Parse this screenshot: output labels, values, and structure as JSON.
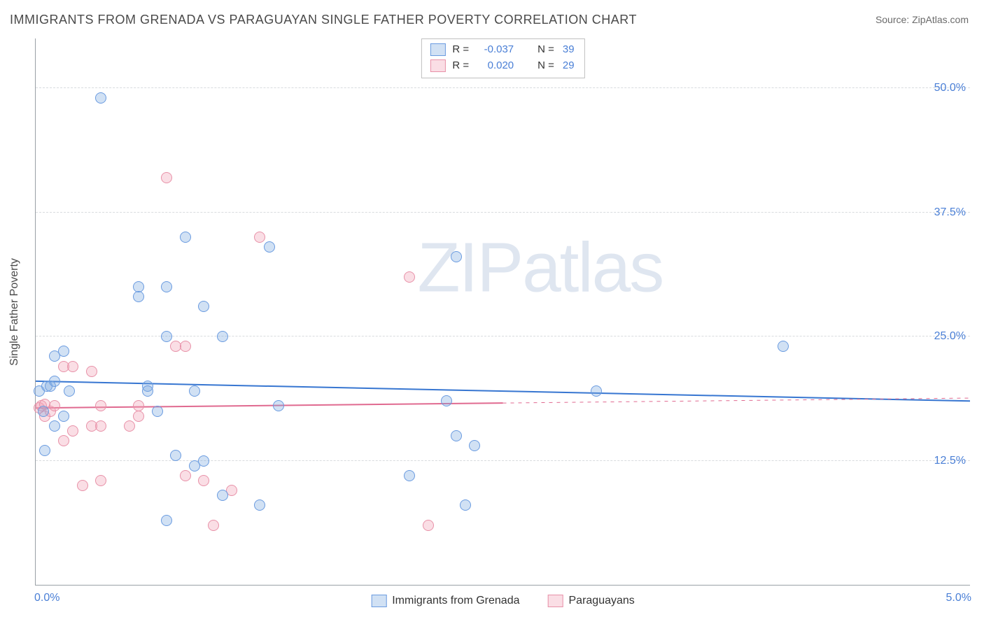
{
  "title": "IMMIGRANTS FROM GRENADA VS PARAGUAYAN SINGLE FATHER POVERTY CORRELATION CHART",
  "source_label": "Source: ZipAtlas.com",
  "watermark": "ZIPatlas",
  "chart": {
    "type": "scatter",
    "background_color": "#ffffff",
    "grid_color": "#d8dbde",
    "axis_color": "#9aa0a6",
    "tick_label_color": "#4a7fd6",
    "axis_title_color": "#4a4a4a",
    "title_fontsize": 18,
    "label_fontsize": 16,
    "y_axis_title": "Single Father Poverty",
    "xlim": [
      0.0,
      5.0
    ],
    "ylim": [
      0.0,
      55.0
    ],
    "x_ticks": [
      {
        "value": 0.0,
        "label": "0.0%",
        "pos": "left"
      },
      {
        "value": 5.0,
        "label": "5.0%",
        "pos": "right"
      }
    ],
    "y_ticks": [
      {
        "value": 12.5,
        "label": "12.5%"
      },
      {
        "value": 25.0,
        "label": "25.0%"
      },
      {
        "value": 37.5,
        "label": "37.5%"
      },
      {
        "value": 50.0,
        "label": "50.0%"
      }
    ],
    "point_radius": 8,
    "point_stroke_width": 1.5
  },
  "series": {
    "grenada": {
      "label": "Immigrants from Grenada",
      "fill_color": "rgba(124,168,224,0.35)",
      "stroke_color": "#6a9be0",
      "line_color": "#3776d1",
      "line_width": 2,
      "r_value": "-0.037",
      "n_value": "39",
      "regression": {
        "x1": 0.0,
        "y1": 20.5,
        "x2": 5.0,
        "y2": 18.5
      },
      "points": [
        [
          0.02,
          19.5
        ],
        [
          0.04,
          17.5
        ],
        [
          0.06,
          20.0
        ],
        [
          0.08,
          20.0
        ],
        [
          0.1,
          20.5
        ],
        [
          0.1,
          23.0
        ],
        [
          0.15,
          23.5
        ],
        [
          0.15,
          17.0
        ],
        [
          0.18,
          19.5
        ],
        [
          0.1,
          16.0
        ],
        [
          0.05,
          13.5
        ],
        [
          0.35,
          49.0
        ],
        [
          0.55,
          30.0
        ],
        [
          0.55,
          29.0
        ],
        [
          0.7,
          30.0
        ],
        [
          0.7,
          25.0
        ],
        [
          0.8,
          35.0
        ],
        [
          0.9,
          28.0
        ],
        [
          0.6,
          20.0
        ],
        [
          0.6,
          19.5
        ],
        [
          0.65,
          17.5
        ],
        [
          0.85,
          19.5
        ],
        [
          0.75,
          13.0
        ],
        [
          0.85,
          12.0
        ],
        [
          0.9,
          12.5
        ],
        [
          0.7,
          6.5
        ],
        [
          1.2,
          8.0
        ],
        [
          1.25,
          34.0
        ],
        [
          1.3,
          18.0
        ],
        [
          1.0,
          25.0
        ],
        [
          1.0,
          9.0
        ],
        [
          2.2,
          18.5
        ],
        [
          2.25,
          33.0
        ],
        [
          2.0,
          11.0
        ],
        [
          2.25,
          15.0
        ],
        [
          2.35,
          14.0
        ],
        [
          2.3,
          8.0
        ],
        [
          3.0,
          19.5
        ],
        [
          4.0,
          24.0
        ]
      ]
    },
    "paraguay": {
      "label": "Paraguayans",
      "fill_color": "rgba(240,160,180,0.35)",
      "stroke_color": "#e891a8",
      "line_color": "#e06a90",
      "line_width": 2,
      "r_value": "0.020",
      "n_value": "29",
      "regression_solid": {
        "x1": 0.0,
        "y1": 17.8,
        "x2": 2.5,
        "y2": 18.3
      },
      "regression_dashed": {
        "x1": 2.5,
        "y1": 18.3,
        "x2": 5.0,
        "y2": 18.8
      },
      "points": [
        [
          0.02,
          17.8
        ],
        [
          0.03,
          18.0
        ],
        [
          0.05,
          18.2
        ],
        [
          0.05,
          17.0
        ],
        [
          0.08,
          17.5
        ],
        [
          0.1,
          18.0
        ],
        [
          0.15,
          22.0
        ],
        [
          0.2,
          22.0
        ],
        [
          0.3,
          21.5
        ],
        [
          0.35,
          18.0
        ],
        [
          0.15,
          14.5
        ],
        [
          0.2,
          15.5
        ],
        [
          0.3,
          16.0
        ],
        [
          0.35,
          16.0
        ],
        [
          0.5,
          16.0
        ],
        [
          0.55,
          17.0
        ],
        [
          0.55,
          18.0
        ],
        [
          0.7,
          41.0
        ],
        [
          0.75,
          24.0
        ],
        [
          0.8,
          24.0
        ],
        [
          0.25,
          10.0
        ],
        [
          0.35,
          10.5
        ],
        [
          0.8,
          11.0
        ],
        [
          0.9,
          10.5
        ],
        [
          1.05,
          9.5
        ],
        [
          0.95,
          6.0
        ],
        [
          1.2,
          35.0
        ],
        [
          2.0,
          31.0
        ],
        [
          2.1,
          6.0
        ]
      ]
    }
  },
  "legend_top": {
    "r_label": "R =",
    "n_label": "N ="
  }
}
